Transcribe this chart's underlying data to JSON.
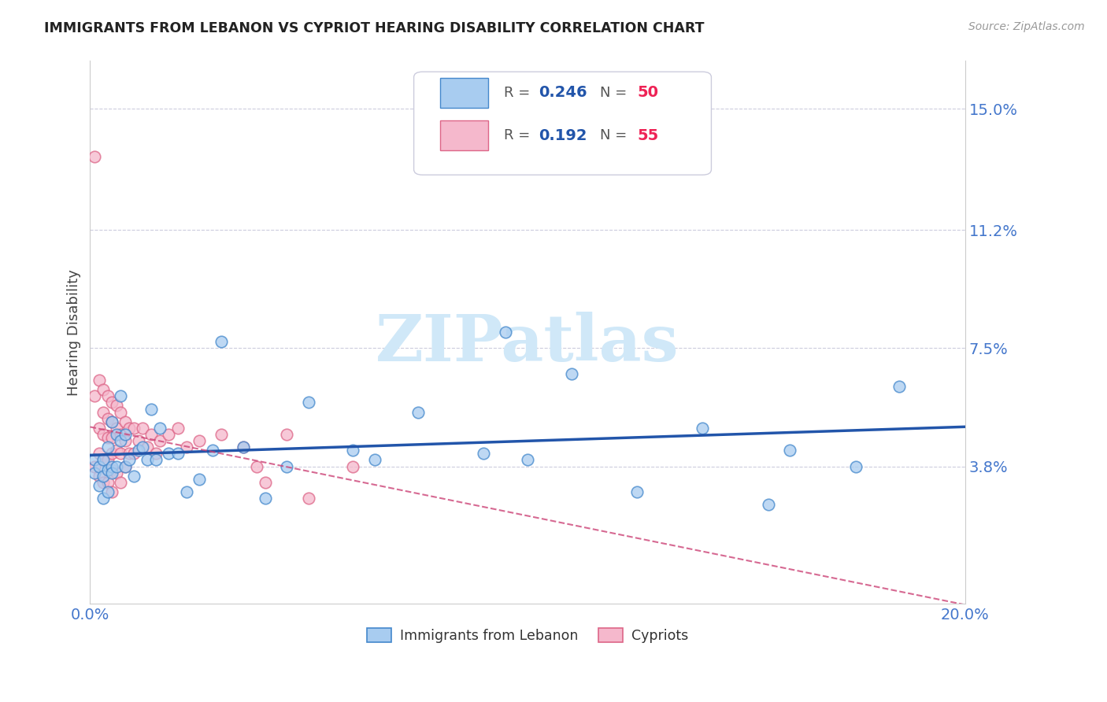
{
  "title": "IMMIGRANTS FROM LEBANON VS CYPRIOT HEARING DISABILITY CORRELATION CHART",
  "source": "Source: ZipAtlas.com",
  "ylabel": "Hearing Disability",
  "xlim": [
    0.0,
    0.2
  ],
  "ylim": [
    -0.005,
    0.165
  ],
  "yticks": [
    0.038,
    0.075,
    0.112,
    0.15
  ],
  "xticks": [
    0.0,
    0.05,
    0.1,
    0.15,
    0.2
  ],
  "blue_R": 0.246,
  "blue_N": 50,
  "pink_R": 0.192,
  "pink_N": 55,
  "blue_color": "#A8CCF0",
  "pink_color": "#F5B8CC",
  "blue_edge_color": "#4488CC",
  "pink_edge_color": "#DD6688",
  "blue_line_color": "#2255AA",
  "pink_line_color": "#CC4477",
  "dashed_line_color": "#AABBDD",
  "axis_tick_color": "#4477CC",
  "grid_color": "#CCCCDD",
  "title_color": "#222222",
  "source_color": "#999999",
  "watermark_color": "#D0E8F8",
  "blue_scatter_x": [
    0.001,
    0.001,
    0.002,
    0.002,
    0.003,
    0.003,
    0.003,
    0.004,
    0.004,
    0.004,
    0.005,
    0.005,
    0.005,
    0.006,
    0.006,
    0.007,
    0.007,
    0.008,
    0.008,
    0.009,
    0.01,
    0.011,
    0.012,
    0.013,
    0.014,
    0.015,
    0.016,
    0.018,
    0.02,
    0.022,
    0.025,
    0.028,
    0.03,
    0.035,
    0.04,
    0.045,
    0.05,
    0.06,
    0.065,
    0.075,
    0.09,
    0.095,
    0.1,
    0.11,
    0.125,
    0.14,
    0.155,
    0.16,
    0.175,
    0.185
  ],
  "blue_scatter_y": [
    0.036,
    0.04,
    0.038,
    0.032,
    0.04,
    0.035,
    0.028,
    0.044,
    0.037,
    0.03,
    0.038,
    0.036,
    0.052,
    0.048,
    0.038,
    0.06,
    0.046,
    0.048,
    0.038,
    0.04,
    0.035,
    0.043,
    0.044,
    0.04,
    0.056,
    0.04,
    0.05,
    0.042,
    0.042,
    0.03,
    0.034,
    0.043,
    0.077,
    0.044,
    0.028,
    0.038,
    0.058,
    0.043,
    0.04,
    0.055,
    0.042,
    0.08,
    0.04,
    0.067,
    0.03,
    0.05,
    0.026,
    0.043,
    0.038,
    0.063
  ],
  "pink_scatter_x": [
    0.001,
    0.001,
    0.001,
    0.002,
    0.002,
    0.002,
    0.002,
    0.003,
    0.003,
    0.003,
    0.003,
    0.003,
    0.004,
    0.004,
    0.004,
    0.004,
    0.004,
    0.005,
    0.005,
    0.005,
    0.005,
    0.005,
    0.005,
    0.006,
    0.006,
    0.006,
    0.006,
    0.007,
    0.007,
    0.007,
    0.007,
    0.008,
    0.008,
    0.008,
    0.009,
    0.009,
    0.01,
    0.01,
    0.011,
    0.012,
    0.013,
    0.014,
    0.015,
    0.016,
    0.018,
    0.02,
    0.022,
    0.025,
    0.03,
    0.035,
    0.038,
    0.04,
    0.045,
    0.05,
    0.06
  ],
  "pink_scatter_y": [
    0.135,
    0.06,
    0.038,
    0.065,
    0.05,
    0.042,
    0.035,
    0.062,
    0.055,
    0.048,
    0.04,
    0.033,
    0.06,
    0.053,
    0.047,
    0.04,
    0.033,
    0.058,
    0.052,
    0.047,
    0.042,
    0.037,
    0.03,
    0.057,
    0.05,
    0.043,
    0.036,
    0.055,
    0.048,
    0.042,
    0.033,
    0.052,
    0.046,
    0.038,
    0.05,
    0.042,
    0.05,
    0.042,
    0.046,
    0.05,
    0.044,
    0.048,
    0.042,
    0.046,
    0.048,
    0.05,
    0.044,
    0.046,
    0.048,
    0.044,
    0.038,
    0.033,
    0.048,
    0.028,
    0.038
  ]
}
